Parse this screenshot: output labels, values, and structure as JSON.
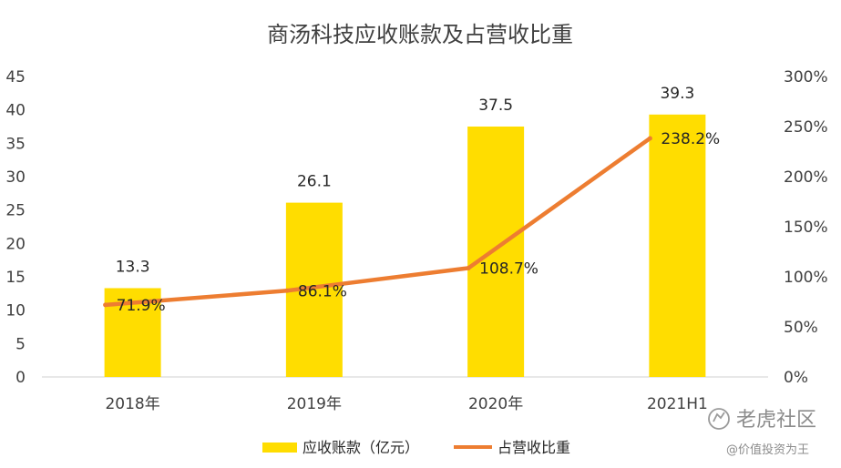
{
  "chart_data": {
    "type": "bar+line",
    "title": "商汤科技应收账款及占营收比重",
    "categories": [
      "2018年",
      "2019年",
      "2020年",
      "2021H1"
    ],
    "series": [
      {
        "name": "应收账款（亿元）",
        "type": "bar",
        "axis": "left",
        "values": [
          13.3,
          26.1,
          37.5,
          39.3
        ],
        "labels": [
          "13.3",
          "26.1",
          "37.5",
          "39.3"
        ],
        "color": "#FFDD00"
      },
      {
        "name": "占营收比重",
        "type": "line",
        "axis": "right",
        "values": [
          71.9,
          86.1,
          108.7,
          238.2
        ],
        "labels": [
          "71.9%",
          "86.1%",
          "108.7%",
          "238.2%"
        ],
        "color": "#ED7D31"
      }
    ],
    "y_left": {
      "min": 0,
      "max": 45,
      "ticks": [
        "0",
        "5",
        "10",
        "15",
        "20",
        "25",
        "30",
        "35",
        "40",
        "45"
      ]
    },
    "y_right": {
      "min": 0,
      "max": 300,
      "ticks": [
        "0%",
        "50%",
        "100%",
        "150%",
        "200%",
        "250%",
        "300%"
      ]
    },
    "legend": {
      "position": "bottom"
    }
  },
  "watermark": {
    "brand": "老虎社区",
    "author": "@价值投资为王"
  }
}
